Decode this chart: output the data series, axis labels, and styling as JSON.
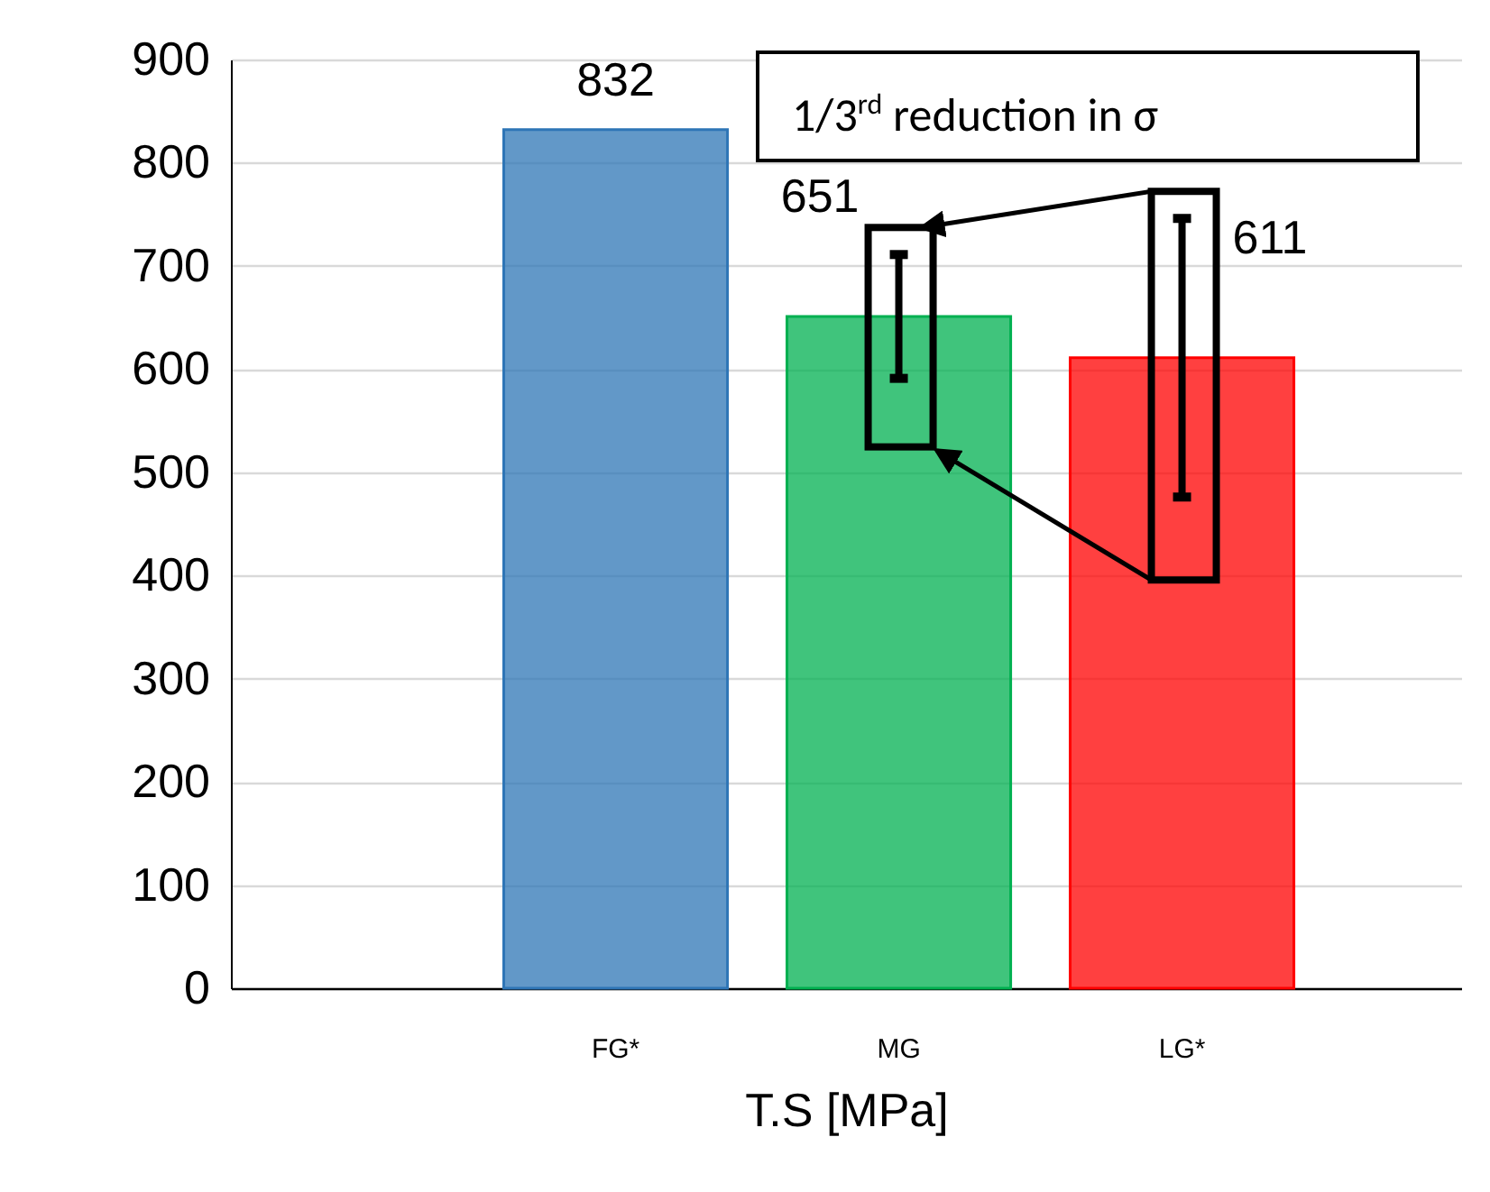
{
  "chart_data": {
    "type": "bar",
    "xlabel": "T.S [MPa]",
    "categories": [
      "FG*",
      "MG",
      "LG*"
    ],
    "values": [
      832,
      651,
      611
    ],
    "colors": [
      "#2e75b6",
      "#00b050",
      "#ff0000"
    ],
    "errors": [
      null,
      60,
      135
    ],
    "data_labels": true,
    "ylim": [
      0,
      900
    ],
    "yticks": [
      0,
      100,
      200,
      300,
      400,
      500,
      600,
      700,
      800,
      900
    ],
    "grid": "y",
    "annotations": [
      "1/3$^{rd}$ reduction in σ"
    ]
  }
}
